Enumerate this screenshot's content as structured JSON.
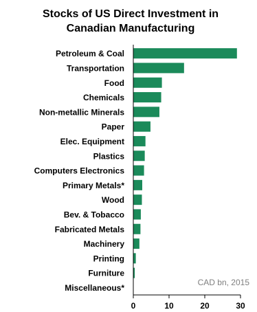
{
  "chart_data": {
    "type": "bar",
    "orientation": "horizontal",
    "title_lines": [
      "Stocks of US Direct Investment in",
      "Canadian Manufacturing"
    ],
    "categories": [
      "Petroleum & Coal",
      "Transportation",
      "Food",
      "Chemicals",
      "Non-metallic Minerals",
      "Paper",
      "Elec. Equipment",
      "Plastics",
      "Computers Electronics",
      "Primary Metals*",
      "Wood",
      "Bev. & Tobacco",
      "Fabricated Metals",
      "Machinery",
      "Printing",
      "Furniture",
      "Miscellaneous*"
    ],
    "values": [
      29.0,
      14.2,
      8.0,
      7.8,
      7.3,
      4.8,
      3.4,
      3.2,
      3.0,
      2.5,
      2.4,
      2.1,
      2.0,
      1.7,
      0.7,
      0.4,
      0
    ],
    "xlim": [
      0,
      30
    ],
    "xticks": [
      0,
      10,
      20,
      30
    ],
    "annotation": "CAD bn, 2015",
    "bar_color": "#1b8a5a",
    "grid": false,
    "legend": "none"
  }
}
